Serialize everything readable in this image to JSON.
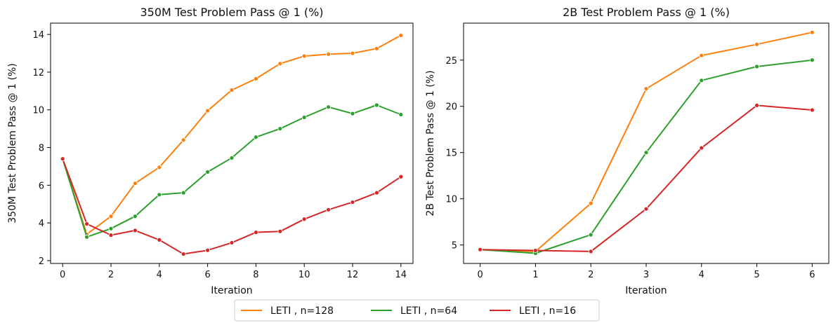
{
  "chart_data": [
    {
      "type": "line",
      "title": "350M Test Problem Pass @ 1 (%)",
      "xlabel": "Iteration",
      "ylabel": "350M Test Problem Pass @ 1 (%)",
      "xlim": [
        -0.5,
        14.5
      ],
      "ylim": [
        1.85,
        14.6
      ],
      "xticks": [
        0,
        2,
        4,
        6,
        8,
        10,
        12,
        14
      ],
      "yticks": [
        2,
        4,
        6,
        8,
        10,
        12,
        14
      ],
      "grid": false,
      "series": [
        {
          "name": "LETI , n=128",
          "color": "#ff7f0e",
          "x": [
            0,
            1,
            2,
            3,
            4,
            5,
            6,
            7,
            8,
            9,
            10,
            11,
            12,
            13,
            14
          ],
          "y": [
            7.4,
            3.4,
            4.35,
            6.1,
            6.95,
            8.4,
            9.95,
            11.05,
            11.65,
            12.45,
            12.85,
            12.95,
            13.0,
            13.25,
            13.95
          ]
        },
        {
          "name": "LETI , n=64",
          "color": "#2ca02c",
          "x": [
            0,
            1,
            2,
            3,
            4,
            5,
            6,
            7,
            8,
            9,
            10,
            11,
            12,
            13,
            14
          ],
          "y": [
            7.4,
            3.25,
            3.7,
            4.35,
            5.5,
            5.6,
            6.7,
            7.45,
            8.55,
            9.0,
            9.6,
            10.15,
            9.8,
            10.25,
            9.75
          ]
        },
        {
          "name": "LETI , n=16",
          "color": "#d62728",
          "x": [
            0,
            1,
            2,
            3,
            4,
            5,
            6,
            7,
            8,
            9,
            10,
            11,
            12,
            13,
            14
          ],
          "y": [
            7.4,
            3.95,
            3.35,
            3.6,
            3.1,
            2.35,
            2.55,
            2.95,
            3.5,
            3.55,
            4.2,
            4.7,
            5.1,
            5.6,
            6.45
          ]
        }
      ]
    },
    {
      "type": "line",
      "title": "2B Test Problem Pass @ 1 (%)",
      "xlabel": "Iteration",
      "ylabel": "2B Test Problem Pass @ 1 (%)",
      "xlim": [
        -0.3,
        6.3
      ],
      "ylim": [
        3.0,
        29.0
      ],
      "xticks": [
        0,
        1,
        2,
        3,
        4,
        5,
        6
      ],
      "yticks": [
        5,
        10,
        15,
        20,
        25
      ],
      "grid": false,
      "series": [
        {
          "name": "LETI , n=128",
          "color": "#ff7f0e",
          "x": [
            0,
            1,
            2,
            3,
            4,
            5,
            6
          ],
          "y": [
            4.5,
            4.3,
            9.5,
            21.9,
            25.5,
            26.7,
            28.0
          ]
        },
        {
          "name": "LETI , n=64",
          "color": "#2ca02c",
          "x": [
            0,
            1,
            2,
            3,
            4,
            5,
            6
          ],
          "y": [
            4.5,
            4.1,
            6.1,
            15.0,
            22.8,
            24.3,
            25.0
          ]
        },
        {
          "name": "LETI , n=16",
          "color": "#d62728",
          "x": [
            0,
            1,
            2,
            3,
            4,
            5,
            6
          ],
          "y": [
            4.5,
            4.4,
            4.3,
            8.9,
            15.5,
            20.1,
            19.6
          ]
        }
      ]
    }
  ],
  "legend": {
    "placement": "bottom-center",
    "entries": [
      {
        "label": "LETI , n=128",
        "color": "#ff7f0e"
      },
      {
        "label": "LETI , n=64",
        "color": "#2ca02c"
      },
      {
        "label": "LETI , n=16",
        "color": "#d62728"
      }
    ]
  }
}
